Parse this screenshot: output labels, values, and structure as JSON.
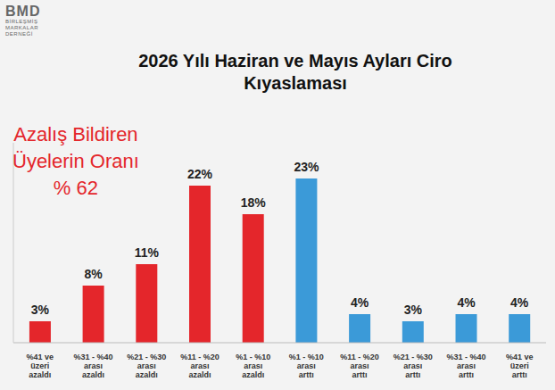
{
  "chart_data": {
    "type": "bar",
    "title": "2026 Yılı Haziran ve Mayıs Ayları Ciro Kıyaslaması",
    "logo": [
      "BMD",
      "BİRLEŞMİŞ",
      "MARKALAR",
      "DERNEĞİ"
    ],
    "annotation": [
      "Azalış Bildiren",
      "Üyelerin Oranı",
      "% 62"
    ],
    "categories": [
      "%41 ve üzeri azaldı",
      "%31 - %40 arası azaldı",
      "%21 - %30 arası azaldı",
      "%11 - %20 arası azaldı",
      "%1 - %10 arası azaldı",
      "%1 - %10 arası arttı",
      "%11 - %20 arası arttı",
      "%21 - %30 arası arttı",
      "%31 - %40 arası arttı",
      "%41 ve üzeri arttı"
    ],
    "values": [
      3,
      8,
      11,
      22,
      18,
      23,
      4,
      3,
      4,
      4
    ],
    "value_labels": [
      "3%",
      "8%",
      "11%",
      "22%",
      "18%",
      "23%",
      "4%",
      "3%",
      "4%",
      "4%"
    ],
    "colors": [
      "#e4262b",
      "#e4262b",
      "#e4262b",
      "#e4262b",
      "#e4262b",
      "#3b9ad8",
      "#3b9ad8",
      "#3b9ad8",
      "#3b9ad8",
      "#3b9ad8"
    ],
    "ylim": [
      0,
      28
    ],
    "data_labels": true,
    "tick_labels": "x",
    "grid": false
  }
}
